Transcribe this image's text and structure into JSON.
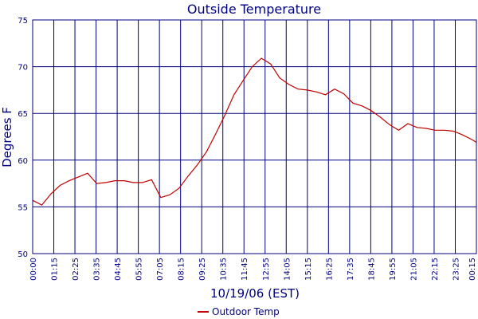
{
  "chart_data": {
    "type": "line",
    "title": "Outside Temperature",
    "xlabel": "10/19/06 (EST)",
    "ylabel": "Degrees F",
    "ylim": [
      50,
      75
    ],
    "yticks": [
      50,
      55,
      60,
      65,
      70,
      75
    ],
    "xticks": [
      "00:00",
      "01:15",
      "02:25",
      "03:35",
      "04:45",
      "05:55",
      "07:05",
      "08:15",
      "09:25",
      "10:35",
      "11:45",
      "12:55",
      "14:05",
      "15:15",
      "16:25",
      "17:35",
      "18:45",
      "19:55",
      "21:05",
      "22:15",
      "23:25",
      "00:15"
    ],
    "grid": true,
    "legend": "bottom-center",
    "colors": {
      "axis": "#000080",
      "line": "#c00000",
      "grid": "#000080"
    },
    "series": [
      {
        "name": "Outdoor Temp",
        "x": [
          "00:00",
          "00:30",
          "01:00",
          "01:30",
          "02:00",
          "02:30",
          "03:00",
          "03:30",
          "04:00",
          "04:30",
          "05:00",
          "05:30",
          "06:00",
          "06:30",
          "07:00",
          "07:30",
          "08:00",
          "08:30",
          "09:00",
          "09:30",
          "10:00",
          "10:30",
          "11:00",
          "11:30",
          "12:00",
          "12:30",
          "13:00",
          "13:30",
          "14:00",
          "14:30",
          "15:00",
          "15:30",
          "16:00",
          "16:30",
          "17:00",
          "17:30",
          "18:00",
          "18:30",
          "19:00",
          "19:30",
          "20:00",
          "20:30",
          "21:00",
          "21:30",
          "22:00",
          "22:30",
          "23:00",
          "23:30",
          "00:00",
          "00:15"
        ],
        "values": [
          55.7,
          55.2,
          56.4,
          57.3,
          57.8,
          58.2,
          58.6,
          57.5,
          57.6,
          57.8,
          57.8,
          57.6,
          57.6,
          57.9,
          56.0,
          56.3,
          57.0,
          58.3,
          59.5,
          60.9,
          62.8,
          64.8,
          67.0,
          68.5,
          70.0,
          70.9,
          70.3,
          68.8,
          68.1,
          67.6,
          67.5,
          67.3,
          67.0,
          67.6,
          67.1,
          66.1,
          65.8,
          65.3,
          64.6,
          63.8,
          63.2,
          63.9,
          63.5,
          63.4,
          63.2,
          63.2,
          63.1,
          62.7,
          62.2,
          61.9
        ]
      }
    ]
  }
}
